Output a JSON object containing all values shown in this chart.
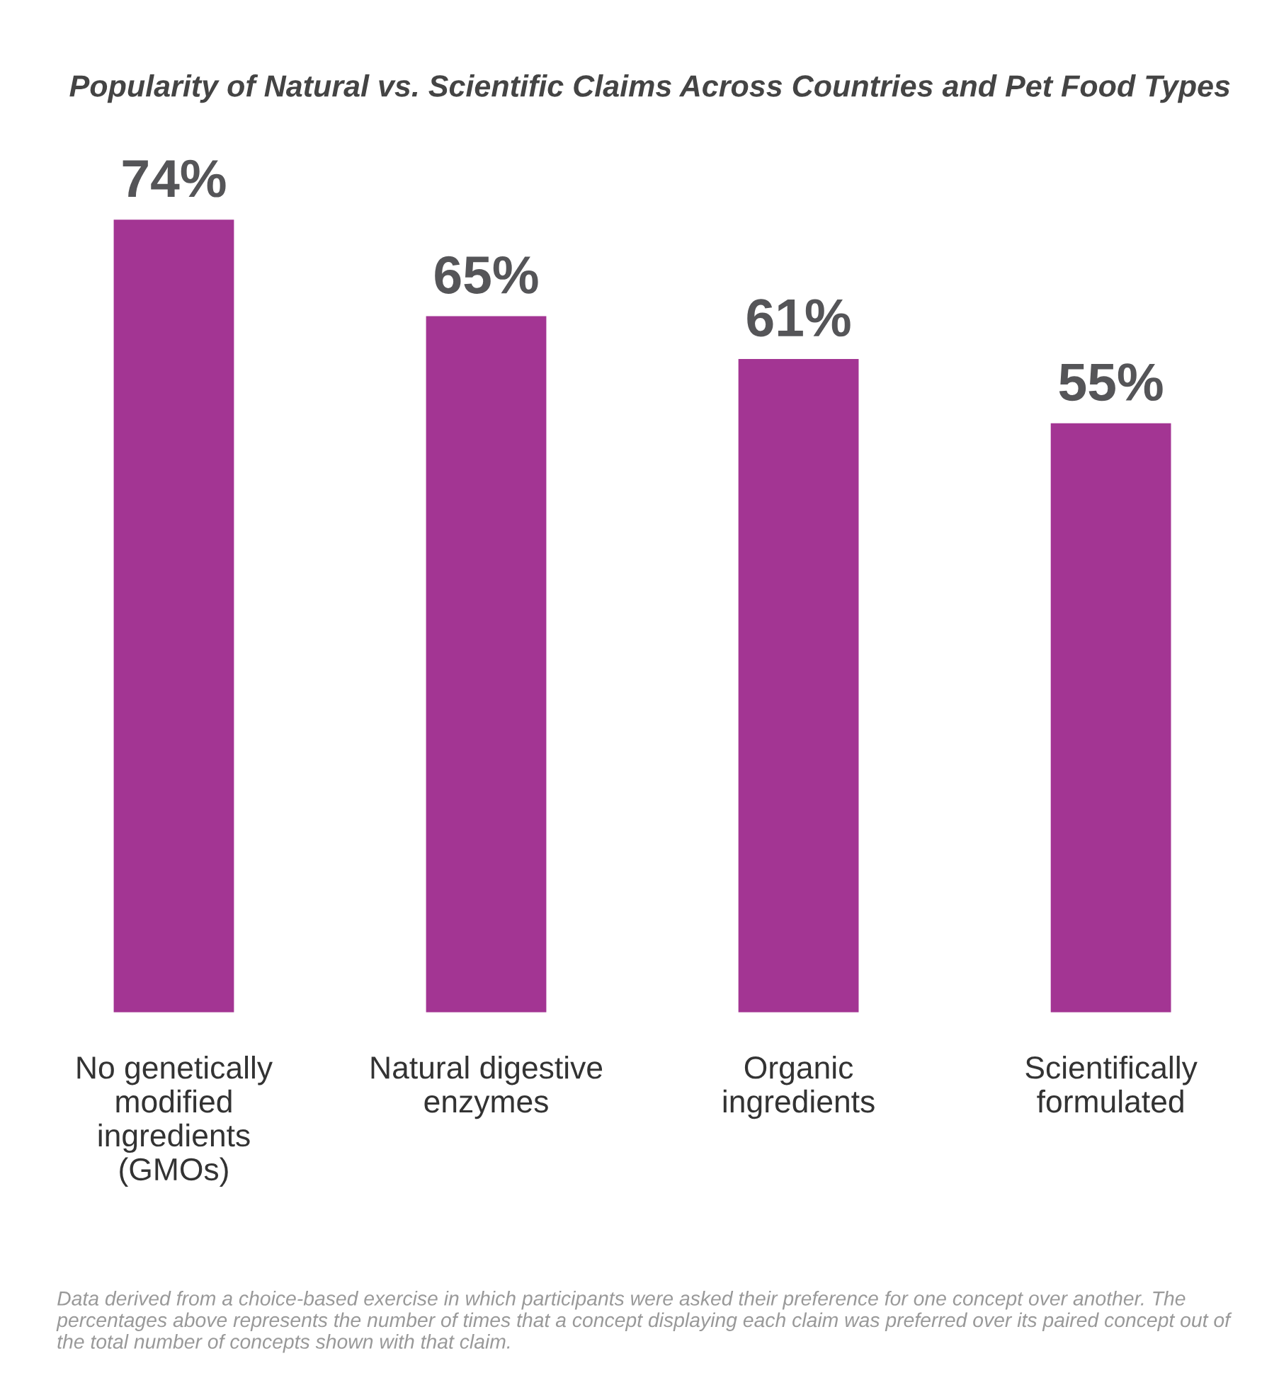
{
  "chart_data": {
    "type": "bar",
    "title": "Popularity of Natural vs. Scientific Claims Across Countries and Pet Food Types",
    "categories": [
      "No genetically modified ingredients (GMOs)",
      "Natural digestive enzymes",
      "Organic ingredients",
      "Scientifically formulated"
    ],
    "values": [
      74,
      65,
      61,
      55
    ],
    "value_labels": [
      "74%",
      "65%",
      "61%",
      "55%"
    ],
    "color": "#a33593",
    "tick_labels": "x",
    "grid": false,
    "annotations": [
      "Data derived from a choice-based exercise in which participants were asked their preference for one concept over another. The percentages above represents the number of times that a concept displaying each claim was preferred over its paired concept out of the total number of concepts shown with that claim."
    ]
  }
}
